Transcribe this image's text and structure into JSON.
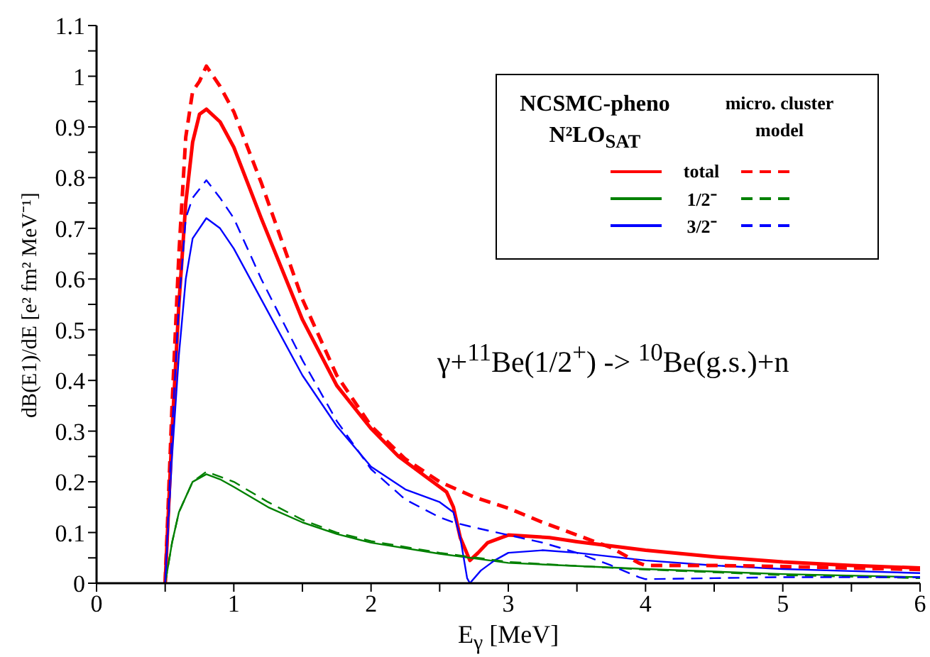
{
  "chart_data": {
    "type": "line",
    "xlabel": "E$_{γ}$ [MeV]",
    "ylabel": "dB(E1)/dE [e² fm² MeV⁻¹]",
    "annotations": [
      "NCSMC-pheno N²LO$_{SAT}$",
      "micro. cluster model",
      "γ+$^{11}$Be(1/2$^{+}$) -> $^{10}$Be(g.s.)+n"
    ],
    "xlim": [
      0,
      6
    ],
    "xticks": [
      0,
      {
        "value": 0.5,
        "label": null
      },
      1,
      {
        "value": 1.5,
        "label": null
      },
      2,
      {
        "value": 2.5,
        "label": null
      },
      3,
      {
        "value": 3.5,
        "label": null
      },
      4,
      {
        "value": 4.5,
        "label": null
      },
      5,
      {
        "value": 5.5,
        "label": null
      },
      6
    ],
    "ylim": [
      0,
      1.1
    ],
    "yticks": [
      0,
      {
        "value": 0.05,
        "label": null
      },
      0.1,
      {
        "value": 0.15,
        "label": null
      },
      0.2,
      {
        "value": 0.25,
        "label": null
      },
      0.3,
      {
        "value": 0.35,
        "label": null
      },
      0.4,
      {
        "value": 0.45,
        "label": null
      },
      0.5,
      {
        "value": 0.55,
        "label": null
      },
      0.6,
      {
        "value": 0.65,
        "label": null
      },
      0.7,
      {
        "value": 0.75,
        "label": null
      },
      0.8,
      {
        "value": 0.85,
        "label": null
      },
      0.9,
      {
        "value": 0.95,
        "label": null
      },
      1,
      {
        "value": 1.05,
        "label": null
      },
      1.1
    ],
    "grid": false,
    "legend": "top right",
    "marker": "none",
    "series": [
      {
        "name": "total",
        "color": "#ff0000",
        "line_style": "solid",
        "x": [
          0.5,
          0.55,
          0.6,
          0.65,
          0.7,
          0.75,
          0.8,
          0.9,
          1.0,
          1.2,
          1.5,
          1.75,
          2.0,
          2.2,
          2.4,
          2.5,
          2.55,
          2.6,
          2.65,
          2.72,
          2.78,
          2.85,
          3.0,
          3.3,
          3.5,
          4.0,
          4.5,
          5.0,
          5.5,
          6.0
        ],
        "values": [
          0,
          0.3,
          0.55,
          0.75,
          0.87,
          0.925,
          0.935,
          0.91,
          0.86,
          0.72,
          0.52,
          0.39,
          0.305,
          0.25,
          0.21,
          0.19,
          0.18,
          0.15,
          0.09,
          0.045,
          0.06,
          0.08,
          0.095,
          0.09,
          0.082,
          0.065,
          0.052,
          0.042,
          0.035,
          0.03
        ]
      },
      {
        "name": "1/2⁻",
        "color": "#008000",
        "line_style": "solid",
        "x": [
          0.5,
          0.55,
          0.6,
          0.7,
          0.8,
          0.9,
          1.0,
          1.25,
          1.5,
          1.75,
          2.0,
          2.5,
          3.0,
          3.5,
          4.0,
          5.0,
          6.0
        ],
        "values": [
          0,
          0.08,
          0.14,
          0.2,
          0.215,
          0.205,
          0.19,
          0.15,
          0.12,
          0.097,
          0.08,
          0.058,
          0.04,
          0.034,
          0.028,
          0.018,
          0.012
        ]
      },
      {
        "name": "3/2⁻",
        "color": "#0000ff",
        "line_style": "solid",
        "x": [
          0.5,
          0.55,
          0.6,
          0.65,
          0.7,
          0.8,
          0.9,
          1.0,
          1.2,
          1.5,
          1.75,
          2.0,
          2.25,
          2.5,
          2.6,
          2.65,
          2.7,
          2.72,
          2.8,
          2.9,
          3.0,
          3.25,
          3.5,
          4.0,
          4.5,
          5.0,
          5.5,
          6.0
        ],
        "values": [
          0,
          0.25,
          0.45,
          0.6,
          0.68,
          0.72,
          0.7,
          0.66,
          0.56,
          0.41,
          0.31,
          0.23,
          0.185,
          0.16,
          0.14,
          0.09,
          0.01,
          0,
          0.025,
          0.045,
          0.06,
          0.065,
          0.06,
          0.045,
          0.035,
          0.028,
          0.024,
          0.02
        ]
      },
      {
        "color": "#ff0000",
        "line_style": "dashed",
        "x": [
          0.5,
          0.55,
          0.6,
          0.65,
          0.7,
          0.75,
          0.8,
          0.9,
          1.0,
          1.2,
          1.5,
          1.75,
          2.0,
          2.25,
          2.5,
          2.75,
          3.0,
          3.25,
          3.5,
          3.75,
          3.95,
          4.0,
          4.5,
          5.0,
          5.5,
          6.0
        ],
        "values": [
          0,
          0.35,
          0.65,
          0.88,
          0.97,
          0.99,
          1.02,
          0.98,
          0.93,
          0.79,
          0.56,
          0.41,
          0.31,
          0.245,
          0.2,
          0.17,
          0.148,
          0.12,
          0.095,
          0.07,
          0.04,
          0.035,
          0.035,
          0.033,
          0.03,
          0.027
        ]
      },
      {
        "color": "#008000",
        "line_style": "dashed",
        "x": [
          0.5,
          0.55,
          0.6,
          0.7,
          0.8,
          0.9,
          1.0,
          1.25,
          1.5,
          1.75,
          2.0,
          2.5,
          3.0,
          3.5,
          4.0,
          5.0,
          6.0
        ],
        "values": [
          0,
          0.08,
          0.14,
          0.2,
          0.22,
          0.21,
          0.2,
          0.16,
          0.125,
          0.1,
          0.083,
          0.06,
          0.042,
          0.034,
          0.027,
          0.016,
          0.01
        ]
      },
      {
        "color": "#0000ff",
        "line_style": "dashed",
        "x": [
          0.5,
          0.55,
          0.6,
          0.65,
          0.7,
          0.8,
          0.9,
          1.0,
          1.2,
          1.5,
          1.75,
          2.0,
          2.25,
          2.5,
          2.6,
          2.75,
          3.0,
          3.25,
          3.5,
          3.75,
          3.95,
          4.0,
          4.5,
          5.0,
          6.0
        ],
        "values": [
          0,
          0.3,
          0.55,
          0.72,
          0.76,
          0.795,
          0.76,
          0.72,
          0.6,
          0.44,
          0.32,
          0.225,
          0.165,
          0.13,
          0.12,
          0.11,
          0.095,
          0.08,
          0.06,
          0.035,
          0.012,
          0.008,
          0.01,
          0.012,
          0.012
        ]
      }
    ]
  }
}
